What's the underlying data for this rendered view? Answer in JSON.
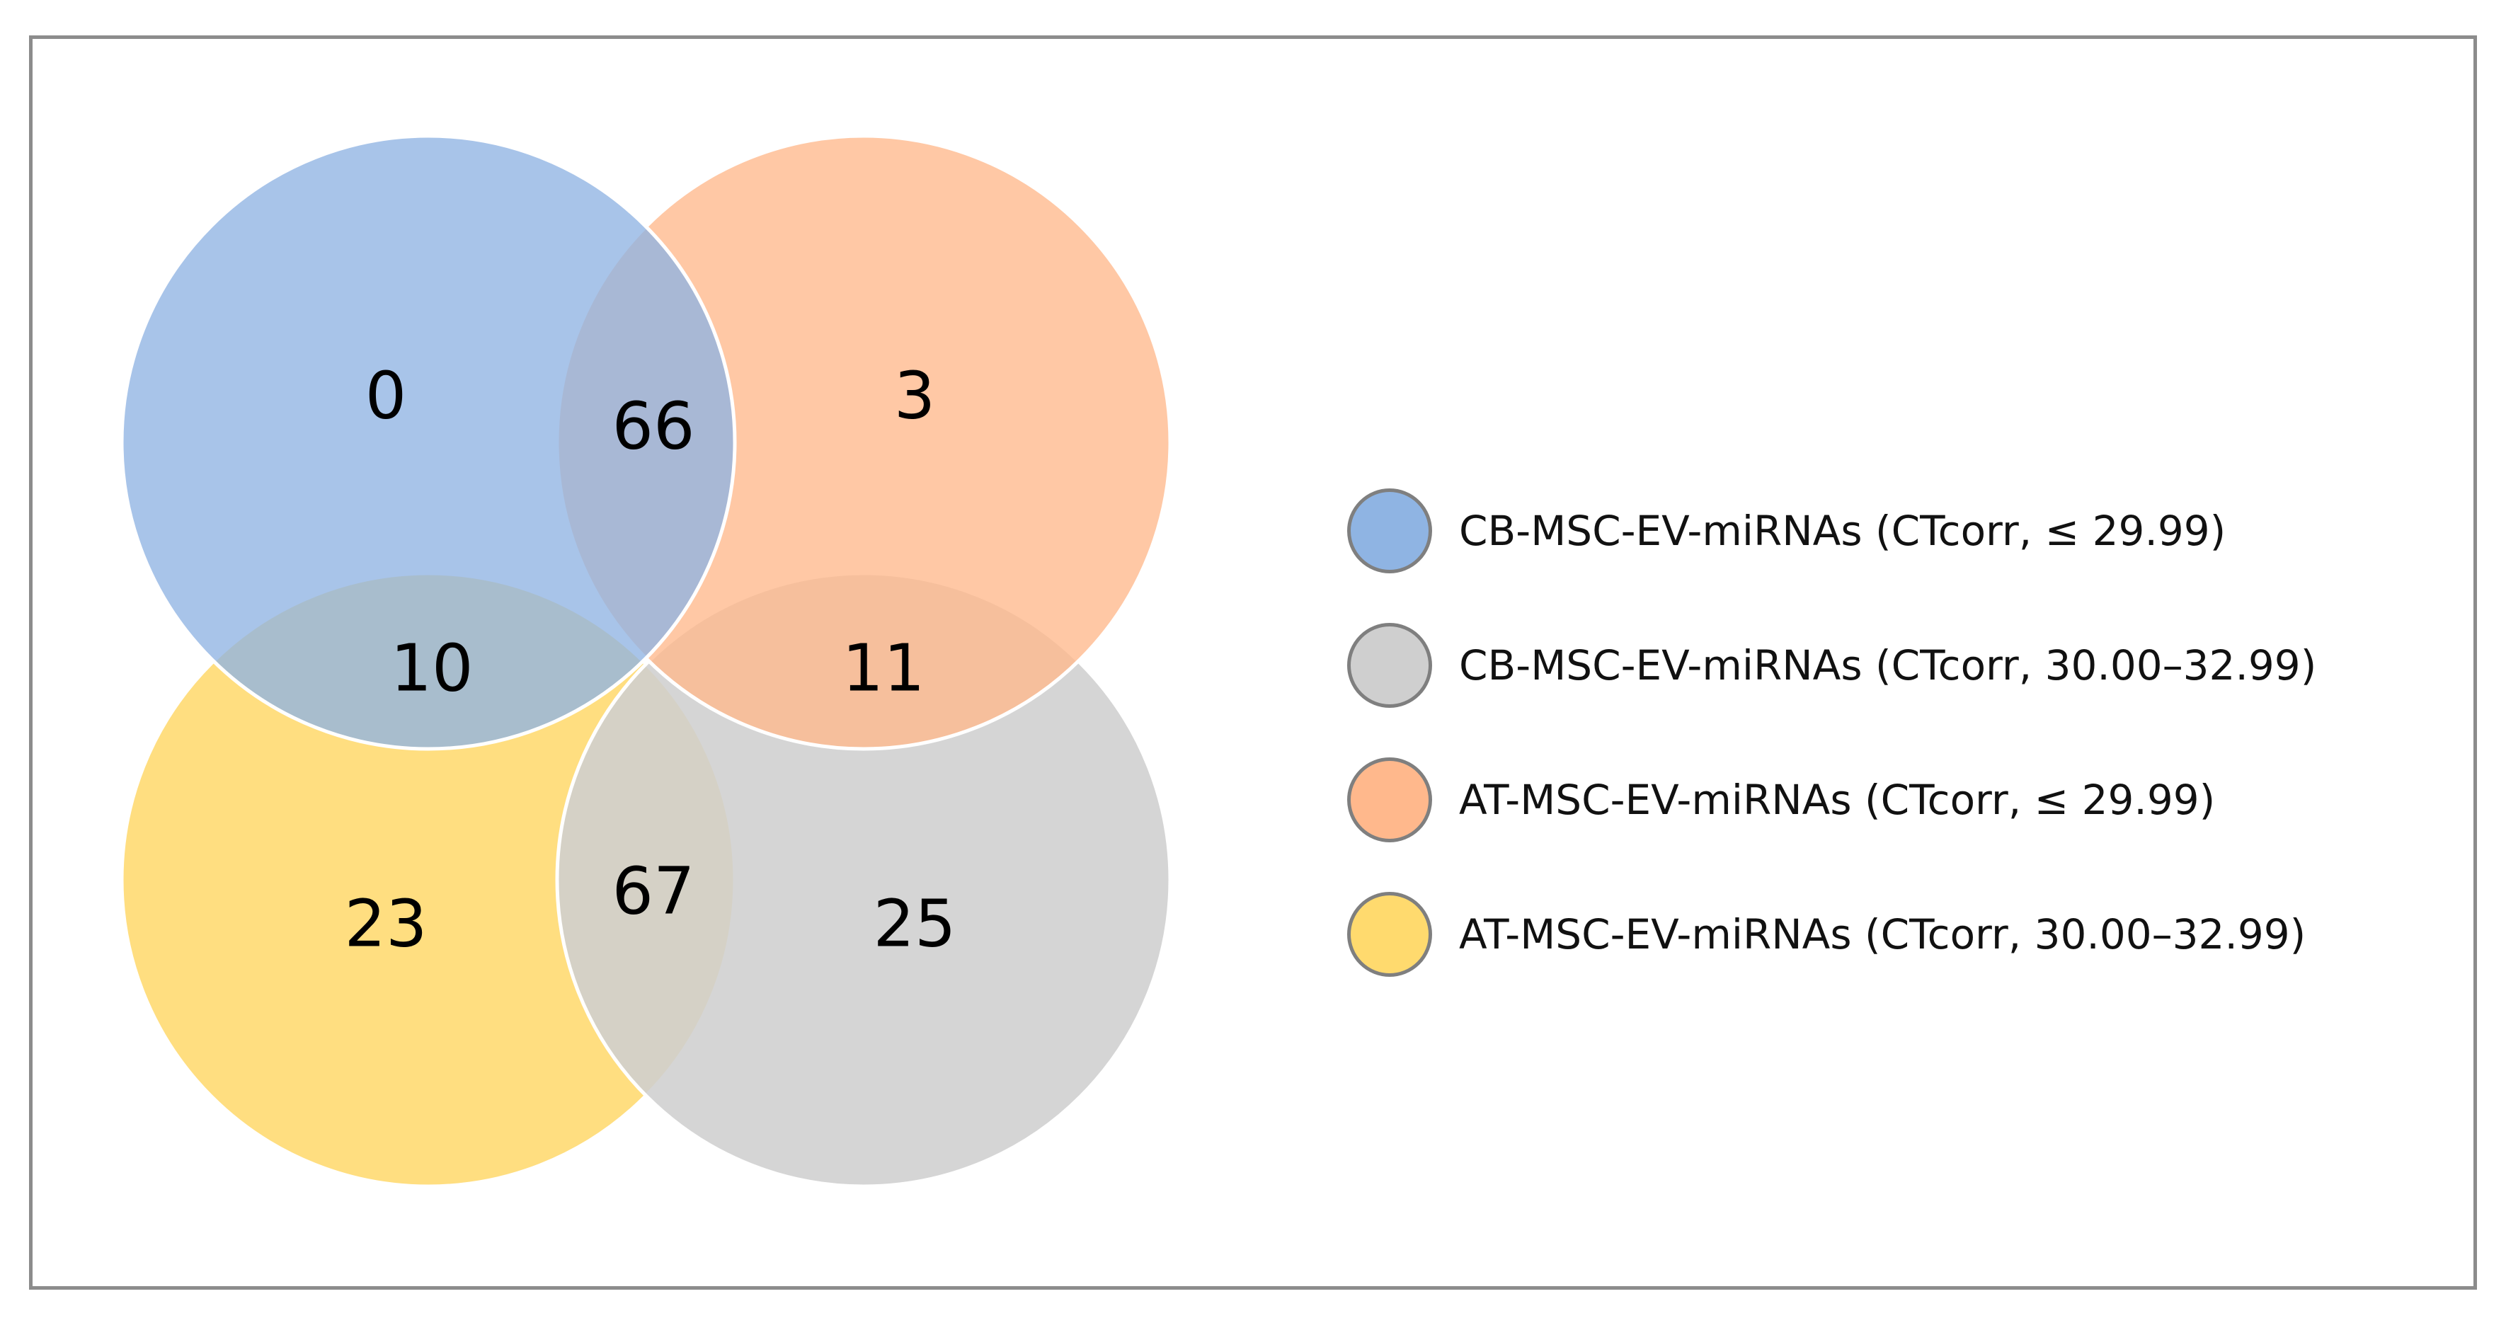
{
  "sets": [
    {
      "id": "cb_low",
      "label": "CB-MSC-EV-miRNAs (CTcorr, ≤ 29.99)",
      "color": "#8FB4E3"
    },
    {
      "id": "cb_high",
      "label": "CB-MSC-EV-miRNAs (CTcorr, 30.00–32.99)",
      "color": "#CFCFCF"
    },
    {
      "id": "at_low",
      "label": "AT-MSC-EV-miRNAs (CTcorr, ≤ 29.99)",
      "color": "#FFB88C"
    },
    {
      "id": "at_high",
      "label": "AT-MSC-EV-miRNAs (CTcorr, 30.00–32.99)",
      "color": "#FFDA6E"
    }
  ],
  "regions": {
    "cb_low_only": "0",
    "cb_low_at_low": "66",
    "at_low_only": "3",
    "cb_low_at_high": "10",
    "at_low_cb_high": "11",
    "at_high_only": "23",
    "at_high_cb_high": "67",
    "cb_high_only": "25"
  }
}
